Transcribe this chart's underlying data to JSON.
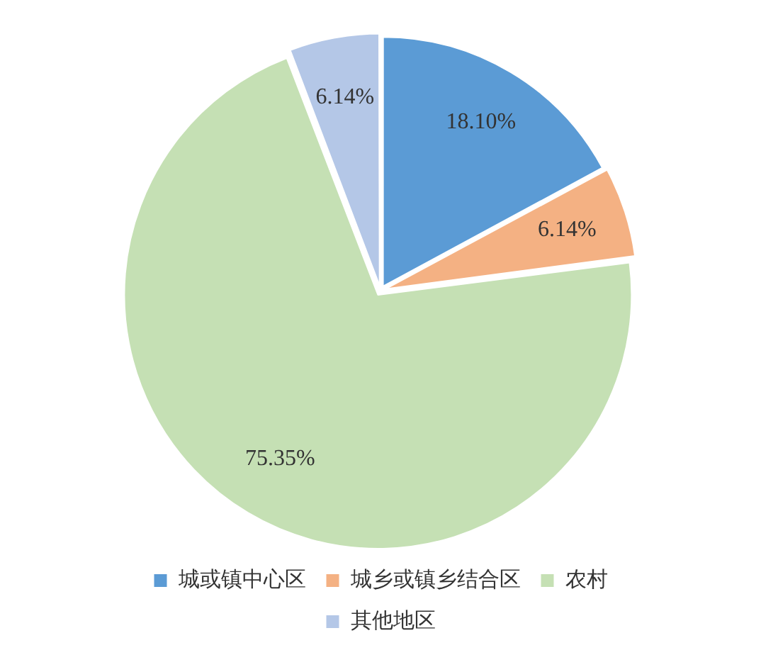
{
  "chart_data": {
    "type": "pie",
    "categories": [
      "城或镇中心区",
      "城乡或镇乡结合区",
      "农村",
      "其他地区"
    ],
    "values": [
      18.1,
      6.14,
      75.35,
      6.14
    ],
    "colors": [
      "#5b9bd5",
      "#f4b183",
      "#c5e0b4",
      "#b4c7e7"
    ],
    "value_labels": [
      "18.10%",
      "6.14%",
      "75.35%",
      "6.14%"
    ],
    "legend": "bottom"
  }
}
